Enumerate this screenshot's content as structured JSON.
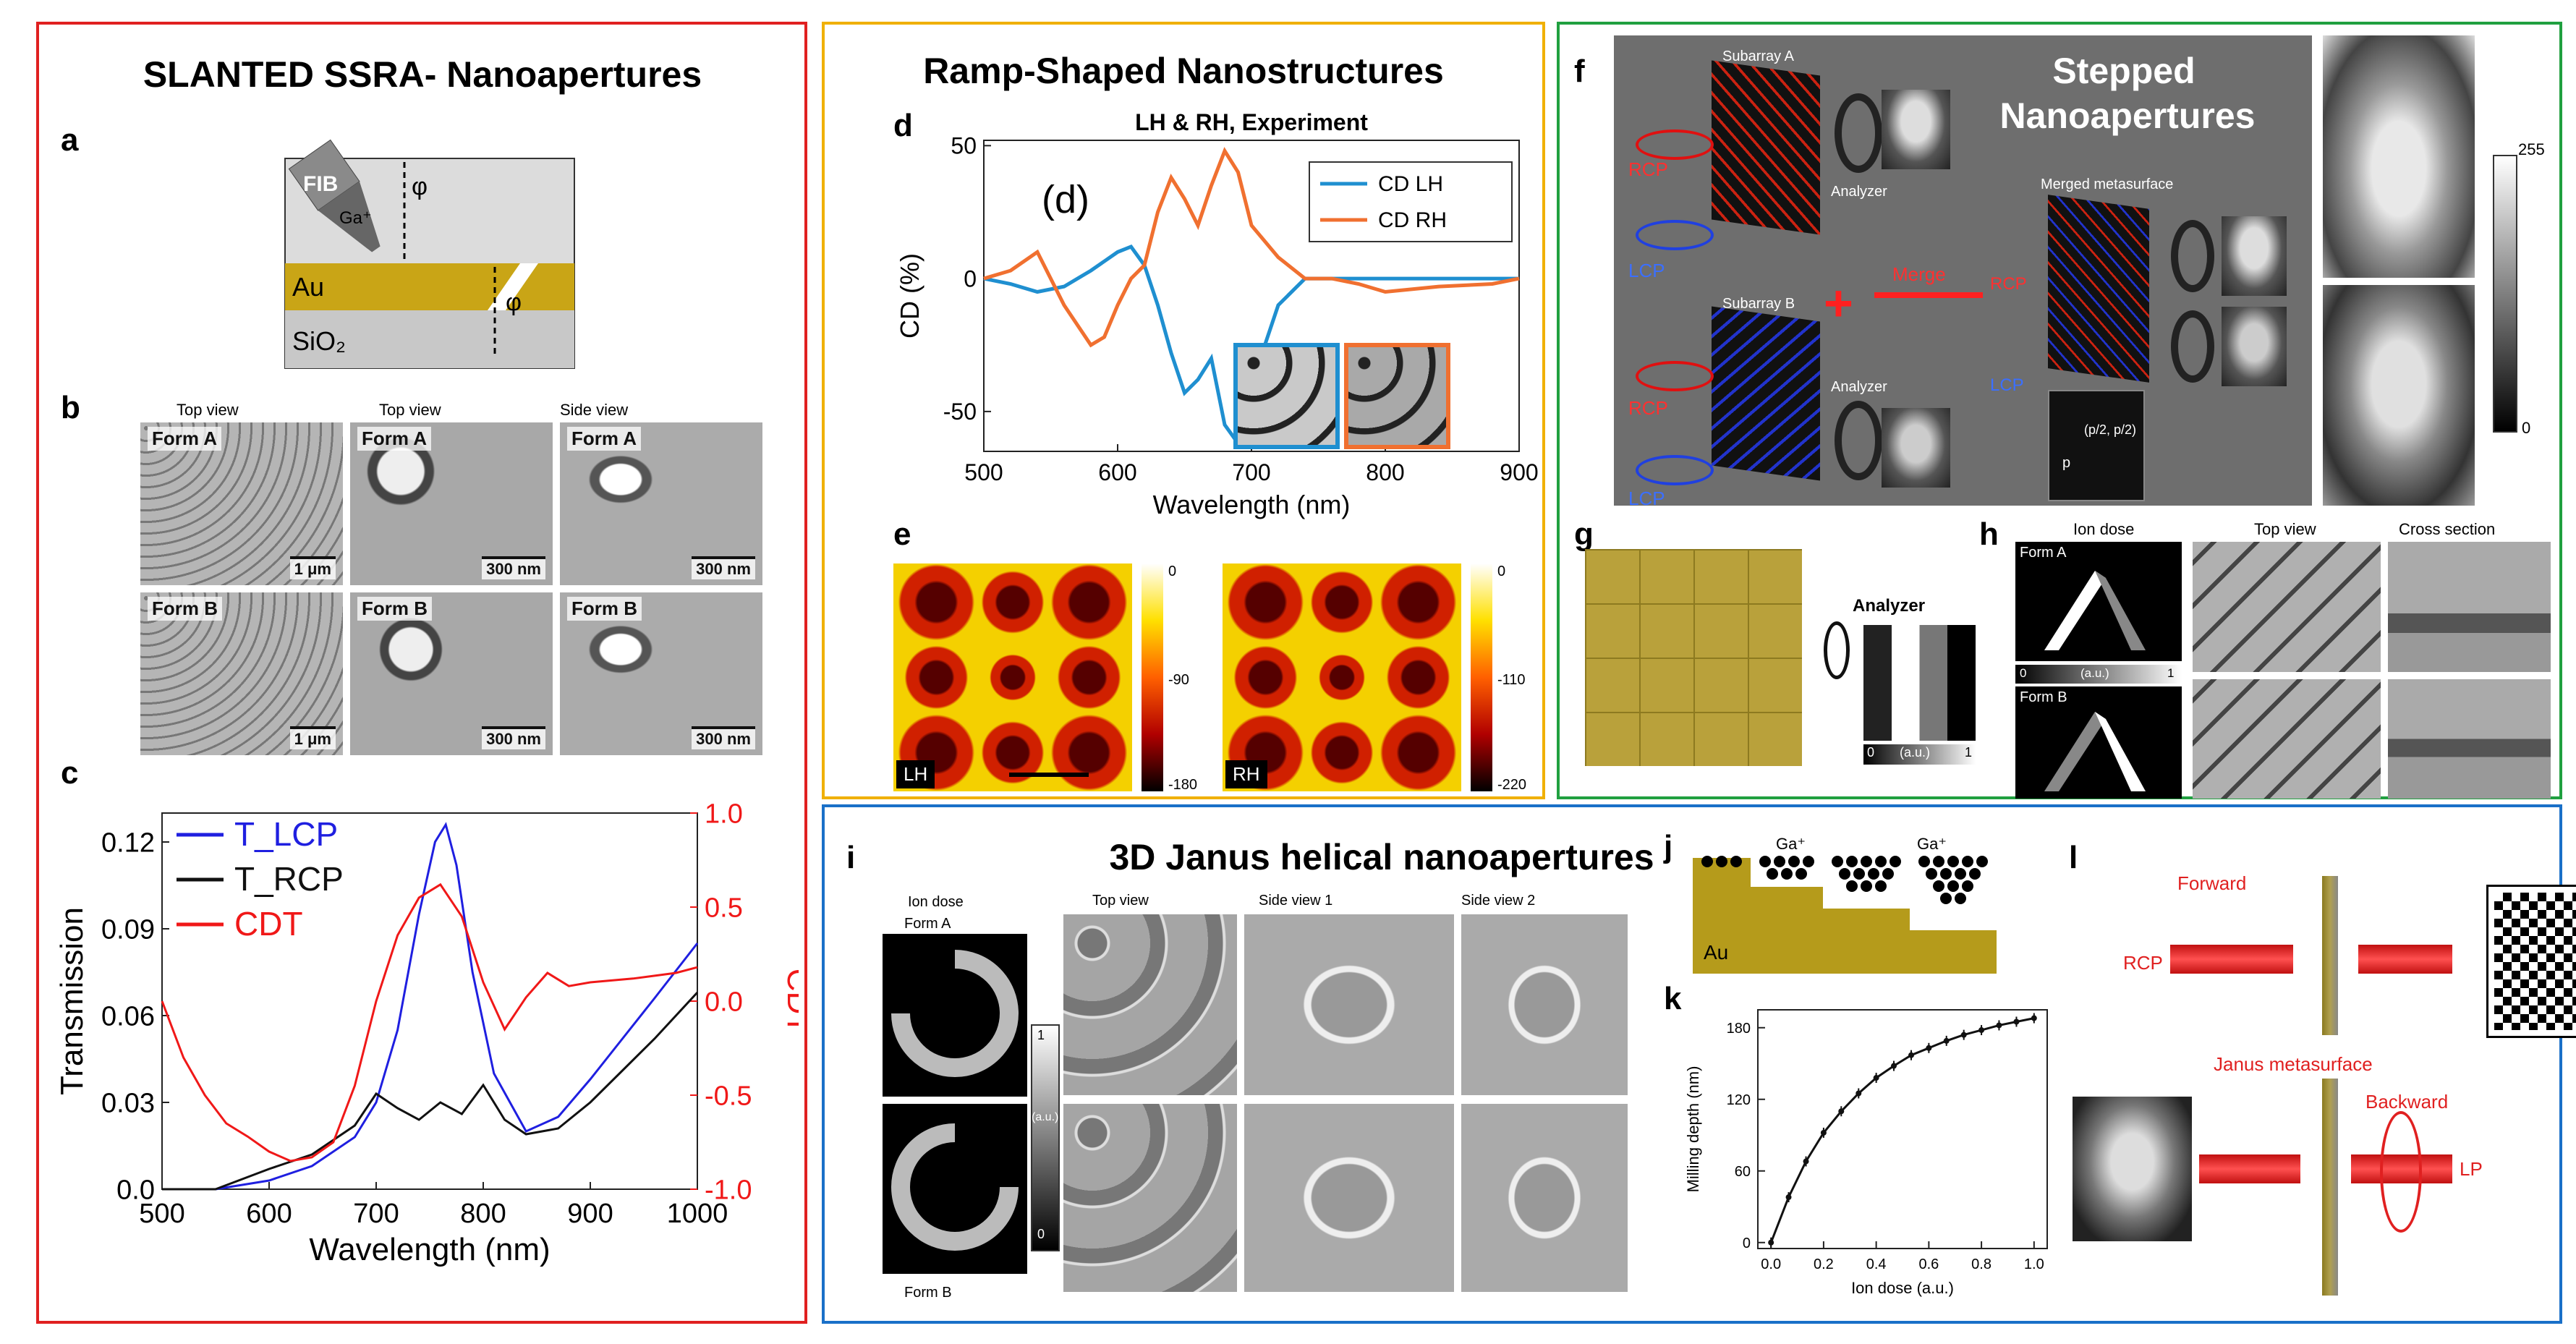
{
  "panel_a_box": {
    "title": "SLANTED SSRA- Nanoapertures",
    "label_a": "a",
    "label_b": "b",
    "label_c": "c",
    "schematic": {
      "fib": "FIB",
      "ga": "Ga⁺",
      "angle1": "φ",
      "angle2": "φ",
      "au": "Au",
      "sio2": "SiO₂"
    },
    "sem_headers": [
      "Top view",
      "Top view",
      "Side view"
    ],
    "sem_tiles": [
      {
        "form": "Form A",
        "scale": "1 μm"
      },
      {
        "form": "Form A",
        "scale": "300 nm"
      },
      {
        "form": "Form A",
        "scale": "300 nm"
      },
      {
        "form": "Form B",
        "scale": "1 μm"
      },
      {
        "form": "Form B",
        "scale": "300 nm"
      },
      {
        "form": "Form B",
        "scale": "300 nm"
      }
    ]
  },
  "panel_d_box": {
    "title": "Ramp-Shaped Nanostructures",
    "label_d": "d",
    "label_e": "e",
    "inset_label": "(d)",
    "e_maps": [
      {
        "tag": "LH",
        "ticks": [
          "0",
          "-90",
          "-180"
        ]
      },
      {
        "tag": "RH",
        "ticks": [
          "0",
          "-110",
          "-220"
        ]
      }
    ]
  },
  "panel_f_box": {
    "title_line1": "Stepped",
    "title_line2": "Nanoapertures",
    "label_f": "f",
    "label_g": "g",
    "label_h": "h",
    "f_labels": {
      "subarray_a": "Subarray A",
      "subarray_b": "Subarray B",
      "analyzer1": "Analyzer",
      "analyzer2": "Analyzer",
      "merged": "Merged metasurface",
      "merge": "Merge",
      "rcp1": "RCP",
      "lcp1": "LCP",
      "rcp2": "RCP",
      "lcp2": "LCP",
      "rcp3": "RCP",
      "lcp3": "LCP",
      "coord": "(p/2, p/2)",
      "p": "p"
    },
    "colorbar_ticks": [
      "255",
      "0"
    ],
    "g_labels": {
      "analyzer": "Analyzer",
      "axis0": "0",
      "axis_unit": "(a.u.)",
      "axis1": "1"
    },
    "h_headers": [
      "Ion dose",
      "Top view",
      "Cross section"
    ],
    "h_forms": [
      "Form A",
      "Form B"
    ],
    "h_axis": [
      "0",
      "(a.u.)",
      "1"
    ]
  },
  "panel_i_box": {
    "title": "3D Janus helical nanoapertures",
    "label_i": "i",
    "label_j": "j",
    "label_k": "k",
    "label_l": "l",
    "i_headers": [
      "Ion dose",
      "Top view",
      "Side view 1",
      "Side view 2"
    ],
    "i_forms": [
      "Form A",
      "Form B"
    ],
    "i_colorbar": [
      "1",
      "(a.u.)",
      "0"
    ],
    "j_labels": {
      "ga1": "Ga⁺",
      "ga2": "Ga⁺",
      "au": "Au"
    },
    "l_labels": {
      "forward": "Forward",
      "rcp": "RCP",
      "janus": "Janus metasurface",
      "backward": "Backward",
      "lp": "LP"
    }
  },
  "chart_data": [
    {
      "id": "c",
      "type": "line",
      "xlabel": "Wavelength (nm)",
      "ylabel": "Transmission",
      "y2label": "CDT",
      "xlim": [
        500,
        1000
      ],
      "ylim": [
        0,
        0.13
      ],
      "y2lim": [
        -1.0,
        1.0
      ],
      "xticks": [
        500,
        600,
        700,
        800,
        900,
        1000
      ],
      "yticks": [
        "0.0",
        "0.03",
        "0.06",
        "0.09",
        "0.12"
      ],
      "y2ticks": [
        "1.0",
        "0.5",
        "0.0",
        "-0.5",
        "-1.0"
      ],
      "series": [
        {
          "name": "T_LCP",
          "color": "#1f1fe0",
          "axis": "left",
          "x": [
            500,
            550,
            600,
            640,
            680,
            700,
            720,
            740,
            755,
            765,
            775,
            790,
            810,
            840,
            870,
            900,
            930,
            960,
            1000
          ],
          "y": [
            0.0,
            0.0,
            0.003,
            0.008,
            0.018,
            0.03,
            0.055,
            0.095,
            0.12,
            0.126,
            0.112,
            0.075,
            0.04,
            0.02,
            0.025,
            0.038,
            0.052,
            0.066,
            0.085
          ]
        },
        {
          "name": "T_RCP",
          "color": "#111111",
          "axis": "left",
          "x": [
            500,
            550,
            600,
            640,
            680,
            700,
            720,
            740,
            760,
            780,
            800,
            820,
            840,
            870,
            900,
            930,
            960,
            1000
          ],
          "y": [
            0.0,
            0.0,
            0.007,
            0.012,
            0.022,
            0.033,
            0.028,
            0.024,
            0.03,
            0.026,
            0.036,
            0.024,
            0.019,
            0.021,
            0.03,
            0.041,
            0.052,
            0.068
          ]
        },
        {
          "name": "CDT",
          "color": "#f01818",
          "axis": "right",
          "x": [
            500,
            520,
            540,
            560,
            580,
            600,
            620,
            640,
            660,
            680,
            700,
            720,
            740,
            760,
            780,
            800,
            820,
            840,
            860,
            880,
            900,
            940,
            980,
            1000
          ],
          "y": [
            0.0,
            -0.3,
            -0.5,
            -0.65,
            -0.72,
            -0.8,
            -0.85,
            -0.83,
            -0.75,
            -0.45,
            0.0,
            0.35,
            0.55,
            0.62,
            0.45,
            0.1,
            -0.15,
            0.02,
            0.15,
            0.08,
            0.1,
            0.12,
            0.15,
            0.18
          ]
        }
      ]
    },
    {
      "id": "d",
      "type": "line",
      "title": "LH & RH, Experiment",
      "xlabel": "Wavelength (nm)",
      "ylabel": "CD (%)",
      "xlim": [
        500,
        900
      ],
      "ylim": [
        -65,
        52
      ],
      "xticks": [
        500,
        600,
        700,
        800,
        900
      ],
      "yticks": [
        -50,
        0,
        50
      ],
      "series": [
        {
          "name": "CD LH",
          "color": "#1f8fd0",
          "x": [
            500,
            520,
            540,
            560,
            580,
            600,
            610,
            620,
            630,
            640,
            650,
            660,
            670,
            680,
            690,
            700,
            720,
            740,
            760,
            780,
            800,
            840,
            880,
            900
          ],
          "y": [
            0,
            -2,
            -5,
            -3,
            3,
            10,
            12,
            5,
            -10,
            -28,
            -43,
            -38,
            -30,
            -55,
            -62,
            -40,
            -10,
            0,
            0,
            0,
            0,
            0,
            0,
            0
          ]
        },
        {
          "name": "CD RH",
          "color": "#f07030",
          "x": [
            500,
            520,
            540,
            560,
            580,
            590,
            600,
            610,
            620,
            630,
            640,
            650,
            660,
            670,
            680,
            690,
            700,
            720,
            740,
            760,
            780,
            800,
            840,
            880,
            900
          ],
          "y": [
            0,
            3,
            10,
            -10,
            -25,
            -22,
            -10,
            0,
            5,
            25,
            38,
            30,
            20,
            35,
            48,
            40,
            20,
            8,
            0,
            0,
            -2,
            -5,
            -3,
            -2,
            0
          ]
        }
      ]
    },
    {
      "id": "k",
      "type": "line",
      "xlabel": "Ion dose (a.u.)",
      "ylabel": "Milling depth (nm)",
      "xlim": [
        -0.05,
        1.05
      ],
      "ylim": [
        -5,
        195
      ],
      "xticks": [
        "0.0",
        "0.2",
        "0.4",
        "0.6",
        "0.8",
        "1.0"
      ],
      "yticks": [
        0,
        60,
        120,
        180
      ],
      "series": [
        {
          "name": "",
          "color": "#111111",
          "x": [
            0,
            0.067,
            0.133,
            0.2,
            0.267,
            0.333,
            0.4,
            0.467,
            0.533,
            0.6,
            0.667,
            0.733,
            0.8,
            0.867,
            0.933,
            1.0
          ],
          "y": [
            0,
            38,
            68,
            92,
            110,
            125,
            138,
            148,
            157,
            163,
            169,
            174,
            178,
            182,
            185,
            188
          ]
        }
      ]
    }
  ]
}
